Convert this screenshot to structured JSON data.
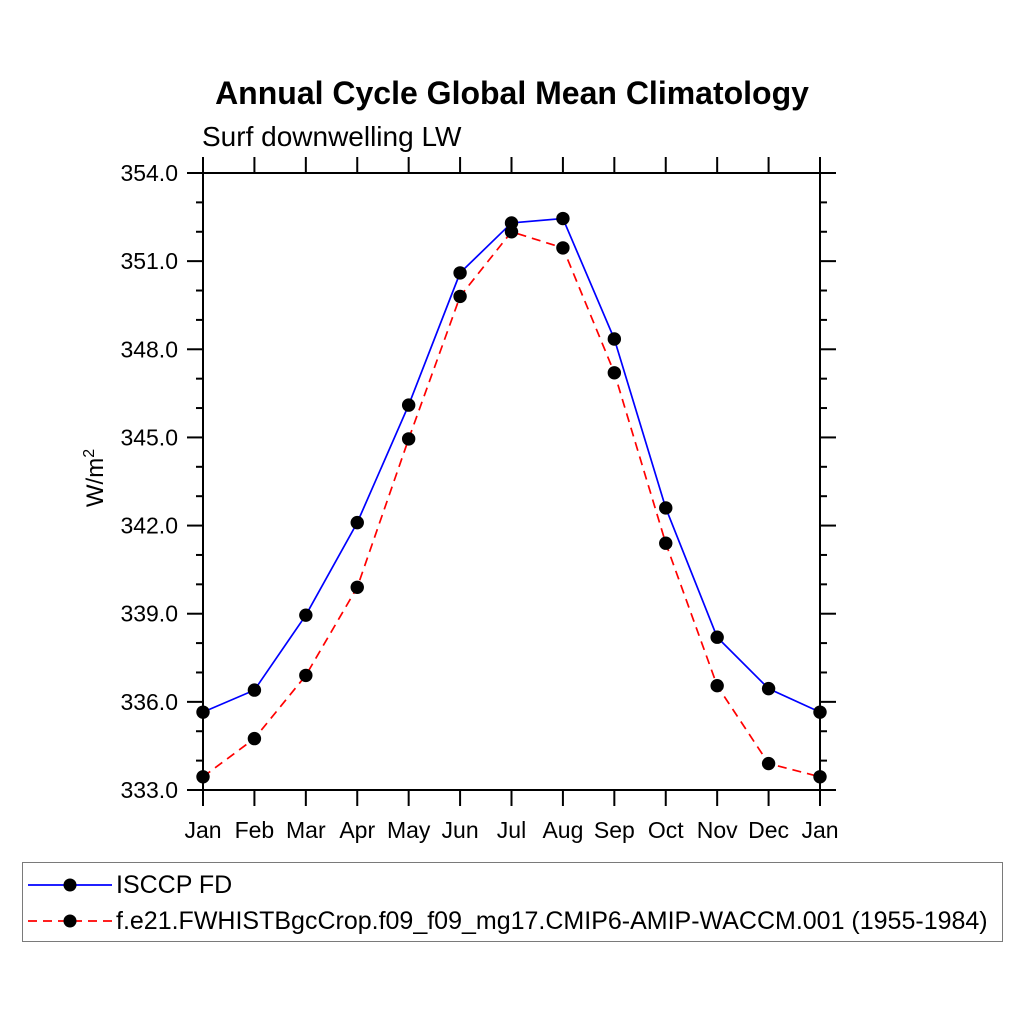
{
  "chart_data": {
    "type": "line",
    "title": "Annual Cycle Global Mean Climatology",
    "subtitle": "Surf downwelling LW",
    "xlabel": "",
    "ylabel": "W/m²",
    "ylabel_parts": {
      "base": "W/m",
      "exponent": "2"
    },
    "categories": [
      "Jan",
      "Feb",
      "Mar",
      "Apr",
      "May",
      "Jun",
      "Jul",
      "Aug",
      "Sep",
      "Oct",
      "Nov",
      "Dec",
      "Jan"
    ],
    "series": [
      {
        "name": "ISCCP FD",
        "color": "#0000ff",
        "line_style": "solid",
        "marker": "circle",
        "marker_color": "#000000",
        "values": [
          335.65,
          336.4,
          338.95,
          342.1,
          346.1,
          350.6,
          352.3,
          352.45,
          348.35,
          342.6,
          338.2,
          336.45,
          335.65
        ]
      },
      {
        "name": "f.e21.FWHISTBgcCrop.f09_f09_mg17.CMIP6-AMIP-WACCM.001 (1955-1984)",
        "color": "#ff0000",
        "line_style": "dashed",
        "marker": "circle",
        "marker_color": "#000000",
        "values": [
          333.45,
          334.75,
          336.9,
          339.9,
          344.95,
          349.8,
          352.0,
          351.45,
          347.2,
          341.4,
          336.55,
          333.9,
          333.45
        ]
      }
    ],
    "ylim": [
      333.0,
      354.0
    ],
    "ytick_major_step": 3.0,
    "ytick_minor_step": 1.0,
    "ytick_labels": [
      "333.0",
      "336.0",
      "339.0",
      "342.0",
      "345.0",
      "348.0",
      "351.0",
      "354.0"
    ],
    "grid": false,
    "legend_position": "bottom"
  }
}
